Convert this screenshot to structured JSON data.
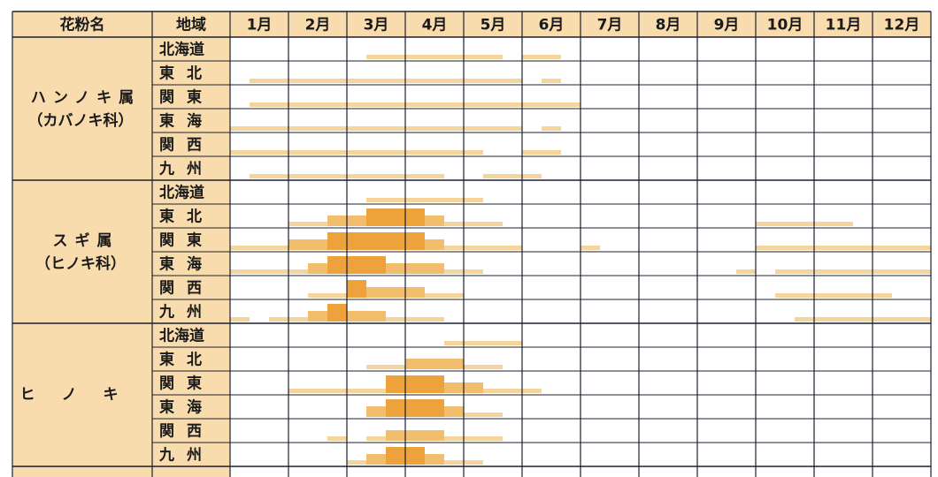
{
  "table": {
    "headers": [
      "花粉名",
      "地域"
    ],
    "months": [
      "1月",
      "2月",
      "3月",
      "4月",
      "5月",
      "6月",
      "7月",
      "8月",
      "9月",
      "10月",
      "11月",
      "12月"
    ],
    "level_colors": [
      "#f6d59c",
      "#f2bd6c",
      "#eda23c"
    ],
    "groups": [
      {
        "name": "ハンノキ属",
        "family": "（カバノキ科）",
        "rows": [
          {
            "region": "北海道",
            "spans": [
              [
                7,
                14,
                1
              ],
              [
                15,
                17,
                1
              ]
            ]
          },
          {
            "region": "東北",
            "spans": [
              [
                1,
                15,
                1
              ],
              [
                16,
                17,
                1
              ]
            ]
          },
          {
            "region": "関東",
            "spans": [
              [
                1,
                18,
                1
              ]
            ]
          },
          {
            "region": "東海",
            "spans": [
              [
                0,
                15,
                1
              ],
              [
                16,
                17,
                1
              ]
            ]
          },
          {
            "region": "関西",
            "spans": [
              [
                0,
                13,
                1
              ],
              [
                15,
                17,
                1
              ]
            ]
          },
          {
            "region": "九州",
            "spans": [
              [
                1,
                11,
                1
              ],
              [
                13,
                16,
                1
              ]
            ]
          }
        ]
      },
      {
        "name": "スギ属",
        "family": "（ヒノキ科）",
        "rows": [
          {
            "region": "北海道",
            "spans": [
              [
                7,
                13,
                1
              ]
            ]
          },
          {
            "region": "東北",
            "spans": [
              [
                3,
                5,
                1
              ],
              [
                5,
                7,
                2
              ],
              [
                7,
                10,
                3
              ],
              [
                10,
                11,
                2
              ],
              [
                11,
                14,
                1
              ],
              [
                27,
                32,
                1
              ]
            ]
          },
          {
            "region": "関東",
            "spans": [
              [
                0,
                3,
                1
              ],
              [
                3,
                5,
                2
              ],
              [
                5,
                10,
                3
              ],
              [
                10,
                11,
                2
              ],
              [
                11,
                15,
                1
              ],
              [
                18,
                19,
                1
              ],
              [
                27,
                36,
                1
              ]
            ]
          },
          {
            "region": "東海",
            "spans": [
              [
                0,
                4,
                1
              ],
              [
                4,
                5,
                2
              ],
              [
                5,
                8,
                3
              ],
              [
                8,
                11,
                2
              ],
              [
                11,
                13,
                1
              ],
              [
                26,
                27,
                1
              ],
              [
                28,
                36,
                1
              ]
            ]
          },
          {
            "region": "関西",
            "spans": [
              [
                4,
                6,
                1
              ],
              [
                6,
                7,
                3
              ],
              [
                7,
                10,
                2
              ],
              [
                10,
                12,
                1
              ],
              [
                28,
                34,
                1
              ]
            ]
          },
          {
            "region": "九州",
            "spans": [
              [
                0,
                1,
                1
              ],
              [
                2,
                4,
                1
              ],
              [
                4,
                5,
                2
              ],
              [
                5,
                6,
                3
              ],
              [
                6,
                8,
                2
              ],
              [
                8,
                11,
                1
              ],
              [
                29,
                36,
                1
              ]
            ]
          }
        ]
      },
      {
        "name": "ヒノキ",
        "rows": [
          {
            "region": "北海道",
            "spans": [
              [
                11,
                15,
                1
              ]
            ]
          },
          {
            "region": "東北",
            "spans": [
              [
                7,
                9,
                1
              ],
              [
                9,
                12,
                2
              ],
              [
                12,
                14,
                1
              ]
            ]
          },
          {
            "region": "関東",
            "spans": [
              [
                3,
                8,
                1
              ],
              [
                8,
                11,
                3
              ],
              [
                11,
                13,
                2
              ],
              [
                13,
                16,
                1
              ]
            ]
          },
          {
            "region": "東海",
            "spans": [
              [
                7,
                8,
                2
              ],
              [
                8,
                11,
                3
              ],
              [
                11,
                12,
                2
              ],
              [
                12,
                14,
                1
              ]
            ]
          },
          {
            "region": "関西",
            "spans": [
              [
                5,
                6,
                1
              ],
              [
                7,
                8,
                1
              ],
              [
                8,
                11,
                2
              ],
              [
                11,
                14,
                1
              ]
            ]
          },
          {
            "region": "九州",
            "spans": [
              [
                6,
                7,
                1
              ],
              [
                7,
                8,
                2
              ],
              [
                8,
                10,
                3
              ],
              [
                10,
                11,
                2
              ],
              [
                11,
                13,
                1
              ]
            ]
          }
        ]
      }
    ]
  }
}
